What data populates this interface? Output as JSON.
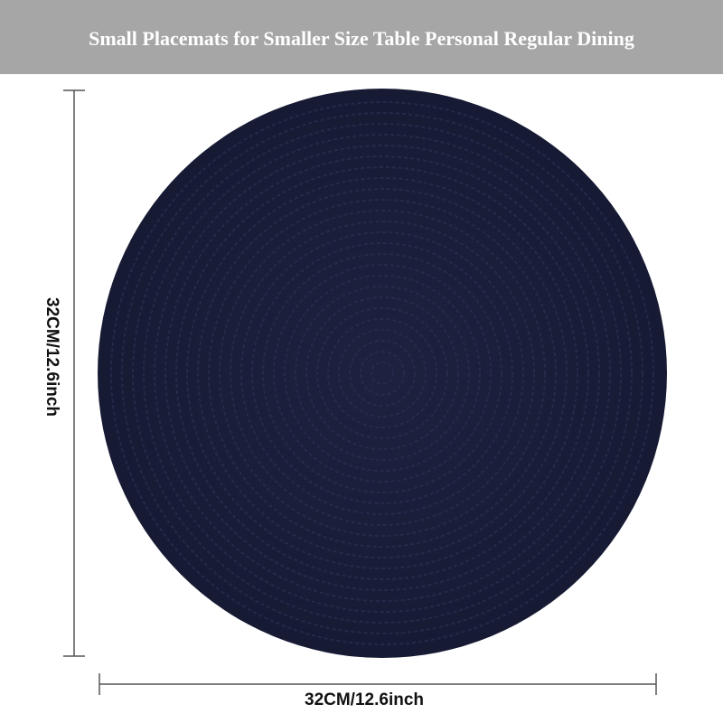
{
  "banner": {
    "title": "Small Placemats for Smaller Size Table Personal Regular Dining"
  },
  "dimensions": {
    "height_label": "32CM/12.6inch",
    "width_label": "32CM/12.6inch"
  }
}
